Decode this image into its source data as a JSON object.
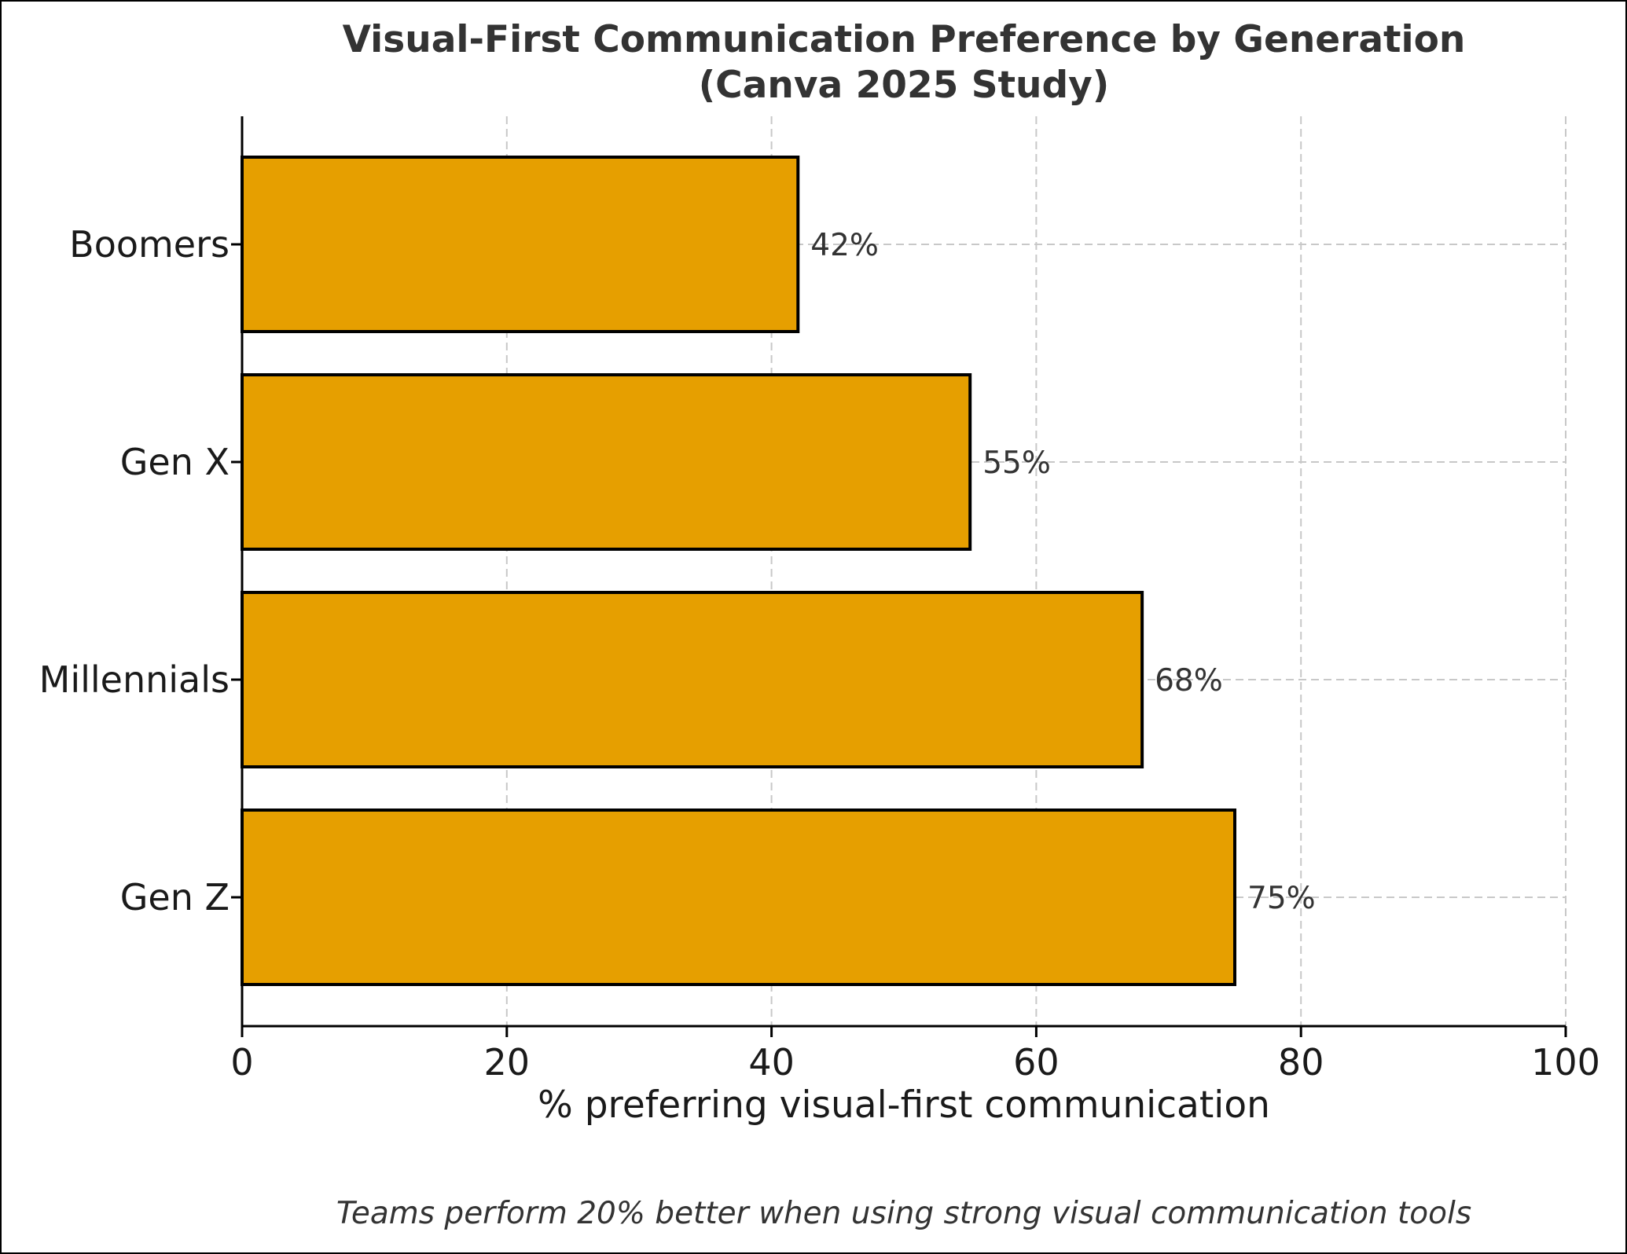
{
  "chart_data": {
    "type": "bar",
    "orientation": "horizontal",
    "title_line1": "Visual-First Communication Preference by Generation",
    "title_line2": "(Canva 2025 Study)",
    "categories": [
      "Gen Z",
      "Millennials",
      "Gen X",
      "Boomers"
    ],
    "values": [
      75,
      68,
      55,
      42
    ],
    "data_labels": [
      "75%",
      "68%",
      "55%",
      "42%"
    ],
    "xlabel": "% preferring visual-first communication",
    "ylabel": "",
    "xlim": [
      0,
      100
    ],
    "xticks": [
      0,
      20,
      40,
      60,
      80,
      100
    ],
    "grid": true,
    "bar_color": "#E69F00",
    "bar_edge_color": "#000000",
    "footnote": "Teams perform 20% better when using strong visual communication tools"
  }
}
